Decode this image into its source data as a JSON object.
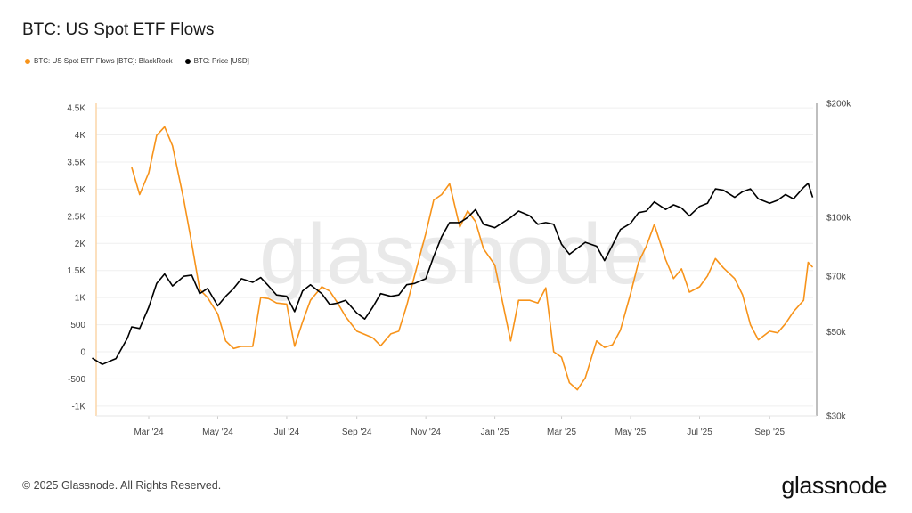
{
  "title": "BTC: US Spot ETF Flows",
  "footer": "© 2025 Glassnode. All Rights Reserved.",
  "logo_text": "glassnode",
  "watermark_text": "glassnode",
  "chart_data": {
    "type": "line",
    "title": "BTC: US Spot ETF Flows",
    "legend_position": "top-left",
    "grid": true,
    "x_ticks": [
      "Mar '24",
      "May '24",
      "Jul '24",
      "Sep '24",
      "Nov '24",
      "Jan '25",
      "Mar '25",
      "May '25",
      "Jul '25",
      "Sep '25"
    ],
    "x_tick_dates": [
      "2024-03-01",
      "2024-05-01",
      "2024-07-01",
      "2024-09-01",
      "2024-11-01",
      "2025-01-01",
      "2025-03-01",
      "2025-05-01",
      "2025-07-01",
      "2025-09-01"
    ],
    "y_left": {
      "ylim": [
        -1100,
        4650
      ],
      "ticks": [
        -1000,
        -500,
        0,
        500,
        1000,
        1500,
        2000,
        2500,
        3000,
        3500,
        4000,
        4500
      ],
      "tick_labels": [
        "-1K",
        "-500",
        "0",
        "500",
        "1K",
        "1.5K",
        "2K",
        "2.5K",
        "3K",
        "3.5K",
        "4K",
        "4.5K"
      ]
    },
    "y_right": {
      "scale": "log",
      "ylim": [
        30000,
        200000
      ],
      "ticks": [
        30000,
        50000,
        70000,
        100000,
        200000
      ],
      "tick_labels": [
        "$30k",
        "$50k",
        "$70k",
        "$100k",
        "$200k"
      ]
    },
    "series": [
      {
        "name": "BTC: US Spot ETF Flows [BTC]: BlackRock",
        "color": "#f7931a",
        "axis": "left",
        "x": [
          "2024-02-15",
          "2024-02-22",
          "2024-03-01",
          "2024-03-08",
          "2024-03-15",
          "2024-03-22",
          "2024-04-01",
          "2024-04-08",
          "2024-04-15",
          "2024-04-22",
          "2024-05-01",
          "2024-05-08",
          "2024-05-15",
          "2024-05-22",
          "2024-06-01",
          "2024-06-08",
          "2024-06-15",
          "2024-06-22",
          "2024-07-01",
          "2024-07-08",
          "2024-07-15",
          "2024-07-22",
          "2024-08-01",
          "2024-08-08",
          "2024-08-15",
          "2024-08-22",
          "2024-09-01",
          "2024-09-08",
          "2024-09-15",
          "2024-09-22",
          "2024-10-01",
          "2024-10-08",
          "2024-10-15",
          "2024-10-22",
          "2024-11-01",
          "2024-11-08",
          "2024-11-15",
          "2024-11-22",
          "2024-12-01",
          "2024-12-08",
          "2024-12-15",
          "2024-12-22",
          "2025-01-01",
          "2025-01-08",
          "2025-01-15",
          "2025-01-22",
          "2025-02-01",
          "2025-02-08",
          "2025-02-15",
          "2025-02-22",
          "2025-03-01",
          "2025-03-08",
          "2025-03-15",
          "2025-03-22",
          "2025-04-01",
          "2025-04-08",
          "2025-04-15",
          "2025-04-22",
          "2025-05-01",
          "2025-05-08",
          "2025-05-15",
          "2025-05-22",
          "2025-06-01",
          "2025-06-08",
          "2025-06-15",
          "2025-06-22",
          "2025-07-01",
          "2025-07-08",
          "2025-07-15",
          "2025-07-22",
          "2025-08-01",
          "2025-08-08",
          "2025-08-15",
          "2025-08-22",
          "2025-09-01",
          "2025-09-08",
          "2025-09-15",
          "2025-09-22",
          "2025-10-01",
          "2025-10-05",
          "2025-10-09"
        ],
        "values": [
          3400,
          2900,
          3300,
          3990,
          4150,
          3800,
          2800,
          2000,
          1150,
          1000,
          700,
          200,
          60,
          100,
          100,
          1000,
          980,
          900,
          880,
          100,
          550,
          950,
          1200,
          1120,
          900,
          650,
          380,
          320,
          260,
          110,
          330,
          380,
          850,
          1400,
          2180,
          2800,
          2900,
          3100,
          2300,
          2600,
          2400,
          1900,
          1600,
          900,
          200,
          950,
          950,
          900,
          1180,
          0,
          -100,
          -570,
          -700,
          -480,
          200,
          80,
          130,
          400,
          1070,
          1650,
          1950,
          2350,
          1700,
          1350,
          1530,
          1100,
          1200,
          1400,
          1720,
          1550,
          1350,
          1050,
          500,
          220,
          380,
          350,
          520,
          740,
          950,
          1650,
          1560
        ]
      },
      {
        "name": "BTC: Price [USD]",
        "color": "#000000",
        "axis": "right",
        "x": [
          "2024-01-11",
          "2024-01-20",
          "2024-02-01",
          "2024-02-11",
          "2024-02-15",
          "2024-02-22",
          "2024-03-01",
          "2024-03-08",
          "2024-03-15",
          "2024-03-22",
          "2024-04-01",
          "2024-04-08",
          "2024-04-15",
          "2024-04-22",
          "2024-05-01",
          "2024-05-08",
          "2024-05-15",
          "2024-05-22",
          "2024-06-01",
          "2024-06-08",
          "2024-06-15",
          "2024-06-22",
          "2024-07-01",
          "2024-07-08",
          "2024-07-15",
          "2024-07-22",
          "2024-08-01",
          "2024-08-08",
          "2024-08-15",
          "2024-08-22",
          "2024-09-01",
          "2024-09-08",
          "2024-09-15",
          "2024-09-22",
          "2024-10-01",
          "2024-10-08",
          "2024-10-15",
          "2024-10-22",
          "2024-11-01",
          "2024-11-08",
          "2024-11-15",
          "2024-11-22",
          "2024-12-01",
          "2024-12-08",
          "2024-12-15",
          "2024-12-22",
          "2025-01-01",
          "2025-01-08",
          "2025-01-15",
          "2025-01-22",
          "2025-02-01",
          "2025-02-08",
          "2025-02-15",
          "2025-02-22",
          "2025-03-01",
          "2025-03-08",
          "2025-03-15",
          "2025-03-22",
          "2025-04-01",
          "2025-04-08",
          "2025-04-15",
          "2025-04-22",
          "2025-05-01",
          "2025-05-08",
          "2025-05-15",
          "2025-05-22",
          "2025-06-01",
          "2025-06-08",
          "2025-06-15",
          "2025-06-22",
          "2025-07-01",
          "2025-07-08",
          "2025-07-15",
          "2025-07-22",
          "2025-08-01",
          "2025-08-08",
          "2025-08-15",
          "2025-08-22",
          "2025-09-01",
          "2025-09-08",
          "2025-09-15",
          "2025-09-22",
          "2025-10-01",
          "2025-10-05",
          "2025-10-09"
        ],
        "values": [
          42600,
          41000,
          42500,
          48000,
          51500,
          51000,
          58000,
          67000,
          71000,
          66000,
          70000,
          70500,
          63000,
          65000,
          58500,
          62000,
          65000,
          69000,
          67500,
          69500,
          66000,
          62500,
          62000,
          56500,
          64000,
          66500,
          63000,
          59000,
          59500,
          60500,
          56000,
          54000,
          58000,
          63000,
          62000,
          62500,
          66500,
          67000,
          69000,
          79000,
          89000,
          97000,
          97000,
          100000,
          105000,
          96000,
          94000,
          97000,
          100000,
          104000,
          101000,
          96000,
          97000,
          96000,
          85000,
          80000,
          83000,
          86000,
          84000,
          77000,
          84500,
          93000,
          96500,
          103000,
          104000,
          110000,
          105000,
          108000,
          106000,
          101000,
          107000,
          109000,
          119000,
          118000,
          113000,
          117000,
          119000,
          112000,
          109000,
          111000,
          115000,
          112000,
          120000,
          123000,
          113000
        ]
      }
    ]
  }
}
